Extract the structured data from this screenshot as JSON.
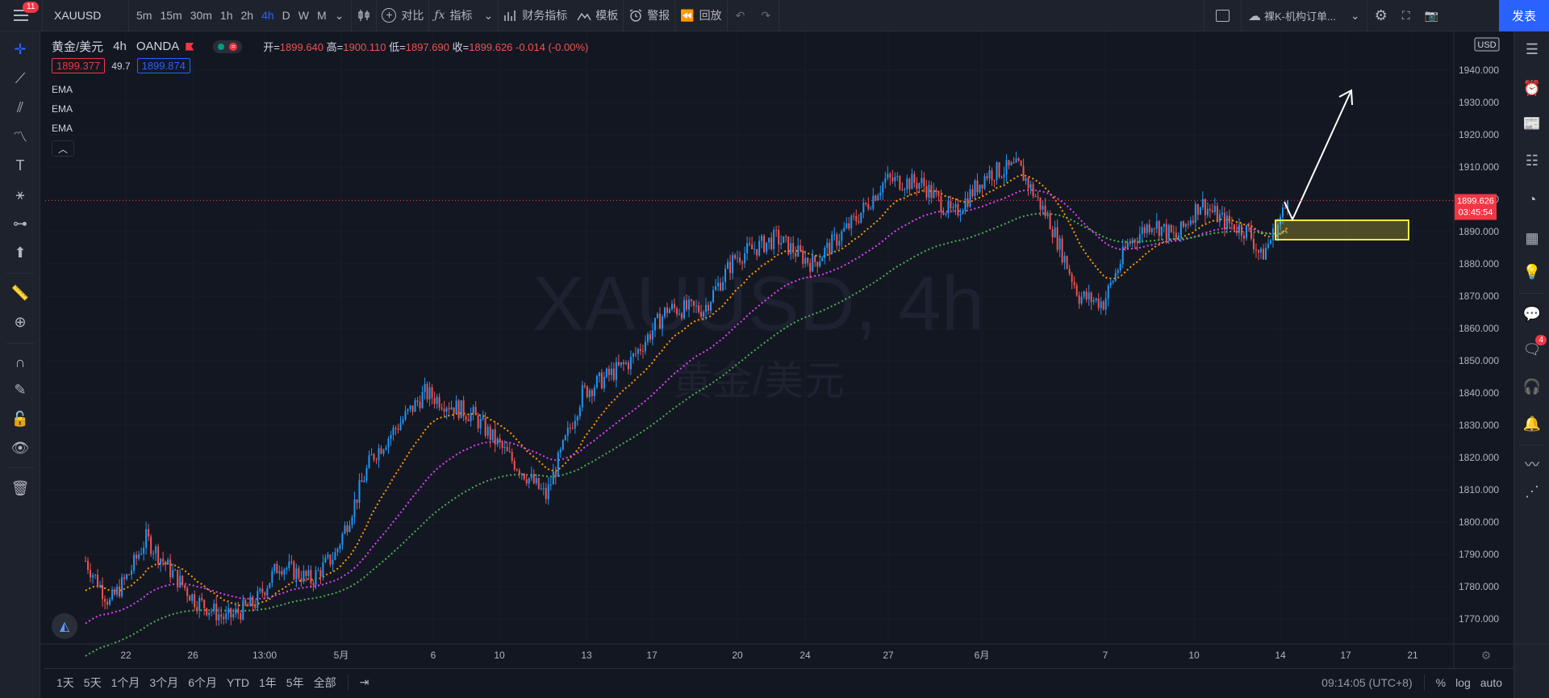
{
  "toolbar": {
    "notification_count": "11",
    "symbol": "XAUUSD",
    "timeframes": [
      "5m",
      "15m",
      "30m",
      "1h",
      "2h",
      "4h",
      "D",
      "W",
      "M"
    ],
    "compare": "对比",
    "indicators": "指标",
    "financials": "财务指标",
    "templates": "模板",
    "alert": "警报",
    "replay": "回放",
    "layout_name": "裸K-机构订单...",
    "publish": "发表"
  },
  "legend": {
    "title": "黄金/美元",
    "interval": "4h",
    "source": "OANDA",
    "open_label": "开=",
    "open": "1899.640",
    "high_label": "高=",
    "high": "1900.110",
    "low_label": "低=",
    "low": "1897.690",
    "close_label": "收=",
    "close": "1899.626",
    "change": "-0.014 (-0.00%)",
    "bid": "1899.377",
    "spread": "49.7",
    "ask": "1899.874",
    "ema1": "EMA",
    "ema2": "EMA",
    "ema3": "EMA"
  },
  "watermark": {
    "line1": "XAUUSD, 4h",
    "line2": "黄金/美元"
  },
  "price_axis": {
    "currency": "USD",
    "ticks": [
      "1940.000",
      "1930.000",
      "1920.000",
      "1910.000",
      "1900.000",
      "1890.000",
      "1880.000",
      "1870.000",
      "1860.000",
      "1850.000",
      "1840.000",
      "1830.000",
      "1820.000",
      "1810.000",
      "1800.000",
      "1790.000",
      "1780.000",
      "1770.000"
    ],
    "current_price": "1899.626",
    "countdown": "03:45:54"
  },
  "time_axis": [
    "22",
    "26",
    "13:00",
    "5月",
    "6",
    "10",
    "13",
    "17",
    "20",
    "24",
    "27",
    "6月",
    "7",
    "10",
    "14",
    "17",
    "21"
  ],
  "bottom": {
    "ranges": [
      "1天",
      "5天",
      "1个月",
      "3个月",
      "6个月",
      "YTD",
      "1年",
      "5年",
      "全部"
    ],
    "clock": "09:14:05 (UTC+8)",
    "percent": "%",
    "log": "log",
    "auto": "auto"
  },
  "right_badge": "4",
  "chart_data": {
    "type": "candlestick",
    "symbol": "XAUUSD",
    "interval": "4h",
    "ylim": [
      1763,
      1952
    ],
    "up_color": "#2196f3",
    "down_color": "#ef5350",
    "ema_colors": [
      "#ff9800",
      "#e040fb",
      "#4caf50"
    ],
    "current_price": 1899.626,
    "key_points": [
      [
        0,
        1788
      ],
      [
        10,
        1775
      ],
      [
        18,
        1784
      ],
      [
        25,
        1795
      ],
      [
        35,
        1785
      ],
      [
        45,
        1776
      ],
      [
        58,
        1770
      ],
      [
        70,
        1775
      ],
      [
        80,
        1787
      ],
      [
        93,
        1782
      ],
      [
        103,
        1790
      ],
      [
        118,
        1820
      ],
      [
        140,
        1840
      ],
      [
        160,
        1833
      ],
      [
        175,
        1820
      ],
      [
        190,
        1808
      ],
      [
        205,
        1840
      ],
      [
        225,
        1850
      ],
      [
        240,
        1866
      ],
      [
        255,
        1866
      ],
      [
        268,
        1882
      ],
      [
        285,
        1888
      ],
      [
        300,
        1880
      ],
      [
        318,
        1894
      ],
      [
        330,
        1906
      ],
      [
        345,
        1905
      ],
      [
        358,
        1895
      ],
      [
        372,
        1908
      ],
      [
        385,
        1910
      ],
      [
        398,
        1893
      ],
      [
        410,
        1870
      ],
      [
        420,
        1868
      ],
      [
        430,
        1886
      ],
      [
        440,
        1893
      ],
      [
        450,
        1888
      ],
      [
        460,
        1899
      ],
      [
        470,
        1893
      ],
      [
        480,
        1890
      ],
      [
        485,
        1882
      ],
      [
        490,
        1889
      ],
      [
        496,
        1899
      ]
    ],
    "annotation_zone": {
      "price_top": 1893.5,
      "price_bottom": 1887.5,
      "color": "#ffeb3b"
    },
    "annotation_arrow": "white arrow pointing up-right from the current price"
  }
}
